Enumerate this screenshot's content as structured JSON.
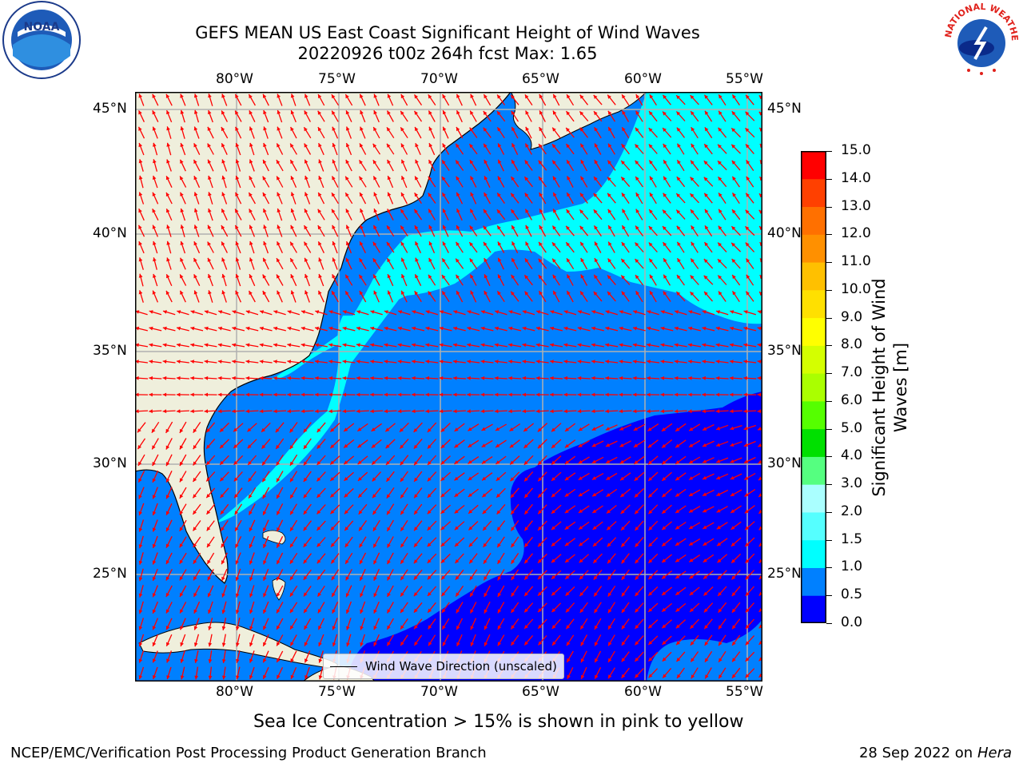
{
  "title_line1": "GEFS MEAN US East Coast Significant Height of Wind Waves",
  "title_line2": "20220926 t00z 264h fcst   Max: 1.65",
  "logos": {
    "left": "NOAA",
    "right": "NATIONAL WEATHER SERVICE"
  },
  "lon_labels": [
    "80°W",
    "75°W",
    "70°W",
    "65°W",
    "60°W",
    "55°W"
  ],
  "lat_labels": [
    "45°N",
    "40°N",
    "35°N",
    "30°N",
    "25°N"
  ],
  "legend_label": "Wind Wave Direction (unscaled)",
  "colorbar": {
    "label_line1": "Significant Height of Wind",
    "label_line2": "Waves [m]",
    "ticks": [
      "15.0",
      "14.0",
      "13.0",
      "12.0",
      "11.0",
      "10.0",
      "9.0",
      "8.0",
      "7.0",
      "6.0",
      "5.0",
      "4.0",
      "3.0",
      "2.0",
      "1.5",
      "1.0",
      "0.5",
      "0.0"
    ],
    "colors": [
      "#0000ff",
      "#0080ff",
      "#00ffff",
      "#55ffff",
      "#aaffff",
      "#55ff80",
      "#00e000",
      "#55ff00",
      "#aaff00",
      "#d4ff00",
      "#ffff00",
      "#ffe000",
      "#ffc000",
      "#ff9000",
      "#ff7000",
      "#ff4000",
      "#ff0000"
    ]
  },
  "caption": "Sea Ice Concentration > 15% is shown in pink to yellow",
  "footer_left": "NCEP/EMC/Verification Post Processing Product Generation Branch",
  "footer_date": "28 Sep 2022 on",
  "footer_host": "Hera",
  "colors": {
    "land": "#efefdc",
    "grid": "#b0b0b0",
    "arrow": "#ff0000"
  }
}
